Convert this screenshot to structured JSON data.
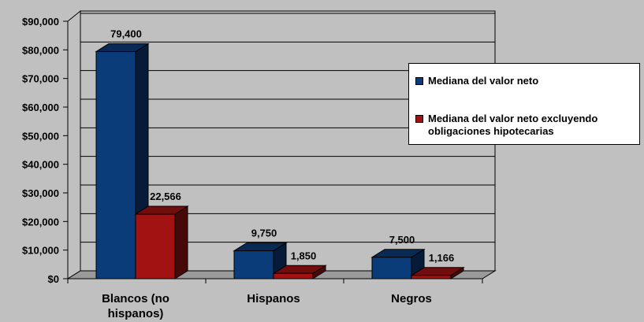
{
  "chart_data": {
    "type": "bar",
    "categories": [
      "Blancos (no hispanos)",
      "Hispanos",
      "Negros"
    ],
    "category_lines": [
      [
        "Blancos (no",
        "hispanos)"
      ],
      [
        "Hispanos"
      ],
      [
        "Negros"
      ]
    ],
    "series": [
      {
        "name": "Mediana del valor neto",
        "values": [
          79400,
          9750,
          7500
        ],
        "labels": [
          "79,400",
          "9,750",
          "7,500"
        ],
        "color": "#0b3c7a"
      },
      {
        "name": "Mediana del valor neto excluyendo obligaciones hipotecarias",
        "values": [
          22566,
          1850,
          1166
        ],
        "labels": [
          "22,566",
          "1,850",
          "1,166"
        ],
        "color": "#a21212"
      }
    ],
    "yticks": [
      "$0",
      "$10,000",
      "$20,000",
      "$30,000",
      "$40,000",
      "$50,000",
      "$60,000",
      "$70,000",
      "$80,000",
      "$90,000"
    ],
    "ylim": [
      0,
      90000
    ],
    "grid": true,
    "legend_position": "right",
    "style": "3d-clustered-column",
    "background_color": "#c0c0c0"
  }
}
